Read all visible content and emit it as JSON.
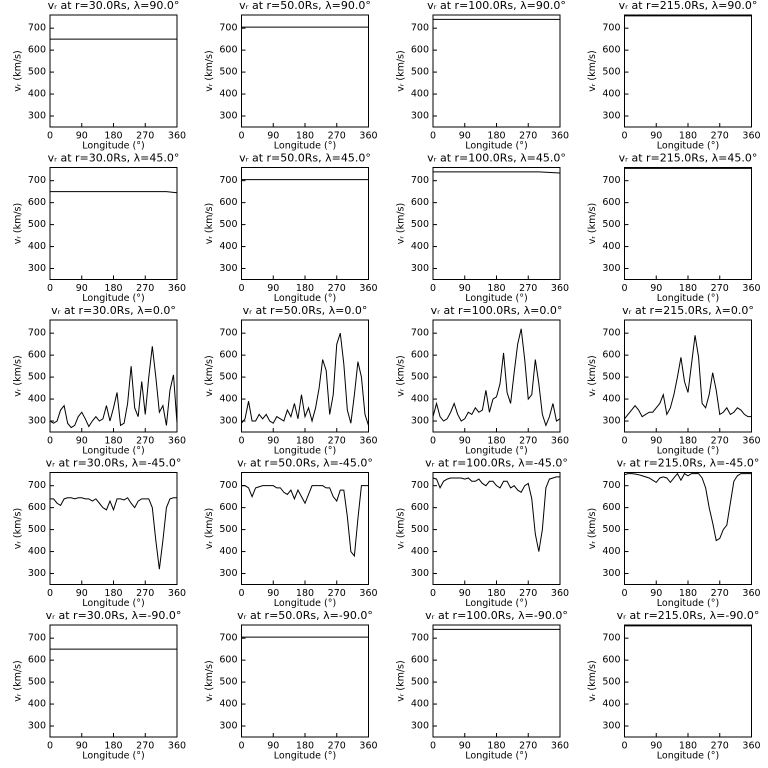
{
  "chart_data": [
    {
      "type": "line",
      "title": "vᵣ at r=30.0Rs, λ=90.0°",
      "x_label": "Longitude (°)",
      "y_label": "vᵣ (km/s)",
      "x": [
        0,
        360
      ],
      "values": [
        650,
        650
      ],
      "color": "#000000",
      "xlim": [
        0,
        360
      ],
      "ylim": [
        250,
        760
      ],
      "xticks": [
        0,
        90,
        180,
        270,
        360
      ],
      "yticks": [
        300,
        400,
        500,
        600,
        700
      ]
    },
    {
      "type": "line",
      "title": "vᵣ at r=50.0Rs, λ=90.0°",
      "x_label": "Longitude (°)",
      "y_label": "vᵣ (km/s)",
      "x": [
        0,
        360
      ],
      "values": [
        705,
        705
      ],
      "color": "#000000",
      "xlim": [
        0,
        360
      ],
      "ylim": [
        250,
        760
      ],
      "xticks": [
        0,
        90,
        180,
        270,
        360
      ],
      "yticks": [
        300,
        400,
        500,
        600,
        700
      ]
    },
    {
      "type": "line",
      "title": "vᵣ at r=100.0Rs, λ=90.0°",
      "x_label": "Longitude (°)",
      "y_label": "vᵣ (km/s)",
      "x": [
        0,
        360
      ],
      "values": [
        740,
        740
      ],
      "color": "#000000",
      "xlim": [
        0,
        360
      ],
      "ylim": [
        250,
        760
      ],
      "xticks": [
        0,
        90,
        180,
        270,
        360
      ],
      "yticks": [
        300,
        400,
        500,
        600,
        700
      ]
    },
    {
      "type": "line",
      "title": "vᵣ at r=215.0Rs, λ=90.0°",
      "x_label": "Longitude (°)",
      "y_label": "vᵣ (km/s)",
      "x": [
        0,
        360
      ],
      "values": [
        756,
        756
      ],
      "color": "#000000",
      "xlim": [
        0,
        360
      ],
      "ylim": [
        250,
        760
      ],
      "xticks": [
        0,
        90,
        180,
        270,
        360
      ],
      "yticks": [
        300,
        400,
        500,
        600,
        700
      ]
    },
    {
      "type": "line",
      "title": "vᵣ at r=30.0Rs, λ=45.0°",
      "x_label": "Longitude (°)",
      "y_label": "vᵣ (km/s)",
      "x": [
        0,
        330,
        360
      ],
      "values": [
        650,
        650,
        645
      ],
      "color": "#000000",
      "xlim": [
        0,
        360
      ],
      "ylim": [
        250,
        760
      ],
      "xticks": [
        0,
        90,
        180,
        270,
        360
      ],
      "yticks": [
        300,
        400,
        500,
        600,
        700
      ]
    },
    {
      "type": "line",
      "title": "vᵣ at r=50.0Rs, λ=45.0°",
      "x_label": "Longitude (°)",
      "y_label": "vᵣ (km/s)",
      "x": [
        0,
        360
      ],
      "values": [
        705,
        705
      ],
      "color": "#000000",
      "xlim": [
        0,
        360
      ],
      "ylim": [
        250,
        760
      ],
      "xticks": [
        0,
        90,
        180,
        270,
        360
      ],
      "yticks": [
        300,
        400,
        500,
        600,
        700
      ]
    },
    {
      "type": "line",
      "title": "vᵣ at r=100.0Rs, λ=45.0°",
      "x_label": "Longitude (°)",
      "y_label": "vᵣ (km/s)",
      "x": [
        0,
        300,
        360
      ],
      "values": [
        740,
        740,
        735
      ],
      "color": "#000000",
      "xlim": [
        0,
        360
      ],
      "ylim": [
        250,
        760
      ],
      "xticks": [
        0,
        90,
        180,
        270,
        360
      ],
      "yticks": [
        300,
        400,
        500,
        600,
        700
      ]
    },
    {
      "type": "line",
      "title": "vᵣ at r=215.0Rs, λ=45.0°",
      "x_label": "Longitude (°)",
      "y_label": "vᵣ (km/s)",
      "x": [
        0,
        360
      ],
      "values": [
        756,
        756
      ],
      "color": "#000000",
      "xlim": [
        0,
        360
      ],
      "ylim": [
        250,
        760
      ],
      "xticks": [
        0,
        90,
        180,
        270,
        360
      ],
      "yticks": [
        300,
        400,
        500,
        600,
        700
      ]
    },
    {
      "type": "line",
      "title": "vᵣ at r=30.0Rs, λ=0.0°",
      "x_label": "Longitude (°)",
      "y_label": "vᵣ (km/s)",
      "x": [
        0,
        10,
        20,
        30,
        40,
        50,
        60,
        70,
        80,
        90,
        100,
        110,
        120,
        130,
        140,
        150,
        160,
        170,
        180,
        190,
        200,
        210,
        220,
        230,
        240,
        250,
        260,
        270,
        280,
        290,
        300,
        310,
        320,
        330,
        340,
        350,
        360
      ],
      "values": [
        300,
        290,
        300,
        350,
        370,
        290,
        270,
        280,
        320,
        340,
        310,
        275,
        300,
        320,
        300,
        310,
        370,
        300,
        360,
        430,
        280,
        290,
        380,
        550,
        360,
        320,
        480,
        330,
        500,
        640,
        500,
        340,
        370,
        280,
        440,
        510,
        290
      ],
      "color": "#000000",
      "xlim": [
        0,
        360
      ],
      "ylim": [
        250,
        760
      ],
      "xticks": [
        0,
        90,
        180,
        270,
        360
      ],
      "yticks": [
        300,
        400,
        500,
        600,
        700
      ]
    },
    {
      "type": "line",
      "title": "vᵣ at r=50.0Rs, λ=0.0°",
      "x_label": "Longitude (°)",
      "y_label": "vᵣ (km/s)",
      "x": [
        0,
        10,
        20,
        30,
        40,
        50,
        60,
        70,
        80,
        90,
        100,
        110,
        120,
        130,
        140,
        150,
        160,
        170,
        180,
        190,
        200,
        210,
        220,
        230,
        240,
        250,
        260,
        270,
        280,
        290,
        300,
        310,
        320,
        330,
        340,
        350,
        360
      ],
      "values": [
        290,
        310,
        390,
        300,
        300,
        330,
        310,
        330,
        300,
        290,
        320,
        310,
        300,
        350,
        320,
        380,
        310,
        420,
        320,
        360,
        300,
        360,
        450,
        580,
        530,
        330,
        420,
        650,
        700,
        560,
        350,
        290,
        420,
        570,
        500,
        330,
        280
      ],
      "color": "#000000",
      "xlim": [
        0,
        360
      ],
      "ylim": [
        250,
        760
      ],
      "xticks": [
        0,
        90,
        180,
        270,
        360
      ],
      "yticks": [
        300,
        400,
        500,
        600,
        700
      ]
    },
    {
      "type": "line",
      "title": "vᵣ at r=100.0Rs, λ=0.0°",
      "x_label": "Longitude (°)",
      "y_label": "vᵣ (km/s)",
      "x": [
        0,
        10,
        20,
        30,
        40,
        50,
        60,
        70,
        80,
        90,
        100,
        110,
        120,
        130,
        140,
        150,
        160,
        170,
        180,
        190,
        200,
        210,
        220,
        230,
        240,
        250,
        260,
        270,
        280,
        290,
        300,
        310,
        320,
        330,
        340,
        350,
        360
      ],
      "values": [
        320,
        380,
        320,
        300,
        310,
        340,
        380,
        330,
        300,
        310,
        340,
        330,
        360,
        340,
        350,
        440,
        340,
        400,
        410,
        470,
        610,
        430,
        380,
        520,
        650,
        720,
        580,
        400,
        420,
        580,
        470,
        330,
        280,
        320,
        380,
        300,
        310
      ],
      "color": "#000000",
      "xlim": [
        0,
        360
      ],
      "ylim": [
        250,
        760
      ],
      "xticks": [
        0,
        90,
        180,
        270,
        360
      ],
      "yticks": [
        300,
        400,
        500,
        600,
        700
      ]
    },
    {
      "type": "line",
      "title": "vᵣ at r=215.0Rs, λ=0.0°",
      "x_label": "Longitude (°)",
      "y_label": "vᵣ (km/s)",
      "x": [
        0,
        10,
        20,
        30,
        40,
        50,
        60,
        70,
        80,
        90,
        100,
        110,
        120,
        130,
        140,
        150,
        160,
        170,
        180,
        190,
        200,
        210,
        220,
        230,
        240,
        250,
        260,
        270,
        280,
        290,
        300,
        310,
        320,
        330,
        340,
        350,
        360
      ],
      "values": [
        310,
        330,
        350,
        370,
        350,
        320,
        330,
        340,
        340,
        360,
        380,
        420,
        330,
        360,
        420,
        500,
        590,
        480,
        430,
        560,
        690,
        590,
        380,
        360,
        420,
        520,
        440,
        330,
        340,
        360,
        330,
        340,
        360,
        350,
        330,
        320,
        320
      ],
      "color": "#000000",
      "xlim": [
        0,
        360
      ],
      "ylim": [
        250,
        760
      ],
      "xticks": [
        0,
        90,
        180,
        270,
        360
      ],
      "yticks": [
        300,
        400,
        500,
        600,
        700
      ]
    },
    {
      "type": "line",
      "title": "vᵣ at r=30.0Rs, λ=-45.0°",
      "x_label": "Longitude (°)",
      "y_label": "vᵣ (km/s)",
      "x": [
        0,
        10,
        20,
        30,
        40,
        50,
        60,
        70,
        80,
        90,
        100,
        110,
        120,
        130,
        140,
        150,
        160,
        170,
        180,
        190,
        200,
        210,
        220,
        230,
        240,
        250,
        260,
        270,
        280,
        290,
        300,
        310,
        320,
        330,
        340,
        350,
        360
      ],
      "values": [
        640,
        640,
        620,
        610,
        640,
        645,
        645,
        640,
        645,
        645,
        640,
        640,
        630,
        640,
        620,
        600,
        590,
        630,
        590,
        640,
        640,
        635,
        645,
        620,
        600,
        630,
        640,
        640,
        640,
        600,
        450,
        320,
        450,
        600,
        640,
        645,
        645
      ],
      "color": "#000000",
      "xlim": [
        0,
        360
      ],
      "ylim": [
        250,
        760
      ],
      "xticks": [
        0,
        90,
        180,
        270,
        360
      ],
      "yticks": [
        300,
        400,
        500,
        600,
        700
      ]
    },
    {
      "type": "line",
      "title": "vᵣ at r=50.0Rs, λ=-45.0°",
      "x_label": "Longitude (°)",
      "y_label": "vᵣ (km/s)",
      "x": [
        0,
        10,
        20,
        30,
        40,
        50,
        60,
        70,
        80,
        90,
        100,
        110,
        120,
        130,
        140,
        150,
        160,
        170,
        180,
        190,
        200,
        210,
        220,
        230,
        240,
        250,
        260,
        270,
        280,
        290,
        300,
        310,
        320,
        330,
        340,
        350,
        360
      ],
      "values": [
        700,
        700,
        690,
        650,
        690,
        695,
        700,
        700,
        700,
        700,
        690,
        690,
        670,
        660,
        680,
        640,
        680,
        650,
        620,
        660,
        700,
        700,
        700,
        700,
        690,
        690,
        650,
        630,
        680,
        680,
        560,
        400,
        380,
        550,
        700,
        700,
        700
      ],
      "color": "#000000",
      "xlim": [
        0,
        360
      ],
      "ylim": [
        250,
        760
      ],
      "xticks": [
        0,
        90,
        180,
        270,
        360
      ],
      "yticks": [
        300,
        400,
        500,
        600,
        700
      ]
    },
    {
      "type": "line",
      "title": "vᵣ at r=100.0Rs, λ=-45.0°",
      "x_label": "Longitude (°)",
      "y_label": "vᵣ (km/s)",
      "x": [
        0,
        10,
        20,
        30,
        40,
        50,
        60,
        70,
        80,
        90,
        100,
        110,
        120,
        130,
        140,
        150,
        160,
        170,
        180,
        190,
        200,
        210,
        220,
        230,
        240,
        250,
        260,
        270,
        280,
        290,
        300,
        310,
        320,
        330,
        340,
        350,
        360
      ],
      "values": [
        735,
        730,
        690,
        720,
        730,
        735,
        735,
        735,
        735,
        730,
        735,
        720,
        720,
        730,
        710,
        700,
        720,
        720,
        700,
        690,
        720,
        720,
        690,
        700,
        680,
        670,
        700,
        710,
        640,
        480,
        400,
        500,
        690,
        730,
        735,
        740,
        740
      ],
      "color": "#000000",
      "xlim": [
        0,
        360
      ],
      "ylim": [
        250,
        760
      ],
      "xticks": [
        0,
        90,
        180,
        270,
        360
      ],
      "yticks": [
        300,
        400,
        500,
        600,
        700
      ]
    },
    {
      "type": "line",
      "title": "vᵣ at r=215.0Rs, λ=-45.0°",
      "x_label": "Longitude (°)",
      "y_label": "vᵣ (km/s)",
      "x": [
        0,
        10,
        20,
        30,
        40,
        50,
        60,
        70,
        80,
        90,
        100,
        110,
        120,
        130,
        140,
        150,
        160,
        170,
        180,
        190,
        200,
        210,
        220,
        230,
        240,
        250,
        260,
        270,
        280,
        290,
        300,
        310,
        320,
        330,
        340,
        350,
        360
      ],
      "values": [
        750,
        755,
        755,
        753,
        750,
        745,
        740,
        735,
        725,
        715,
        735,
        740,
        735,
        715,
        735,
        755,
        725,
        755,
        745,
        755,
        755,
        755,
        735,
        690,
        600,
        530,
        450,
        460,
        500,
        520,
        620,
        720,
        745,
        755,
        755,
        755,
        755
      ],
      "color": "#000000",
      "xlim": [
        0,
        360
      ],
      "ylim": [
        250,
        760
      ],
      "xticks": [
        0,
        90,
        180,
        270,
        360
      ],
      "yticks": [
        300,
        400,
        500,
        600,
        700
      ]
    },
    {
      "type": "line",
      "title": "vᵣ at r=30.0Rs, λ=-90.0°",
      "x_label": "Longitude (°)",
      "y_label": "vᵣ (km/s)",
      "x": [
        0,
        360
      ],
      "values": [
        650,
        650
      ],
      "color": "#000000",
      "xlim": [
        0,
        360
      ],
      "ylim": [
        250,
        760
      ],
      "xticks": [
        0,
        90,
        180,
        270,
        360
      ],
      "yticks": [
        300,
        400,
        500,
        600,
        700
      ]
    },
    {
      "type": "line",
      "title": "vᵣ at r=50.0Rs, λ=-90.0°",
      "x_label": "Longitude (°)",
      "y_label": "vᵣ (km/s)",
      "x": [
        0,
        360
      ],
      "values": [
        705,
        705
      ],
      "color": "#000000",
      "xlim": [
        0,
        360
      ],
      "ylim": [
        250,
        760
      ],
      "xticks": [
        0,
        90,
        180,
        270,
        360
      ],
      "yticks": [
        300,
        400,
        500,
        600,
        700
      ]
    },
    {
      "type": "line",
      "title": "vᵣ at r=100.0Rs, λ=-90.0°",
      "x_label": "Longitude (°)",
      "y_label": "vᵣ (km/s)",
      "x": [
        0,
        360
      ],
      "values": [
        740,
        740
      ],
      "color": "#000000",
      "xlim": [
        0,
        360
      ],
      "ylim": [
        250,
        760
      ],
      "xticks": [
        0,
        90,
        180,
        270,
        360
      ],
      "yticks": [
        300,
        400,
        500,
        600,
        700
      ]
    },
    {
      "type": "line",
      "title": "vᵣ at r=215.0Rs, λ=-90.0°",
      "x_label": "Longitude (°)",
      "y_label": "vᵣ (km/s)",
      "x": [
        0,
        360
      ],
      "values": [
        756,
        756
      ],
      "color": "#000000",
      "xlim": [
        0,
        360
      ],
      "ylim": [
        250,
        760
      ],
      "xticks": [
        0,
        90,
        180,
        270,
        360
      ],
      "yticks": [
        300,
        400,
        500,
        600,
        700
      ]
    }
  ]
}
